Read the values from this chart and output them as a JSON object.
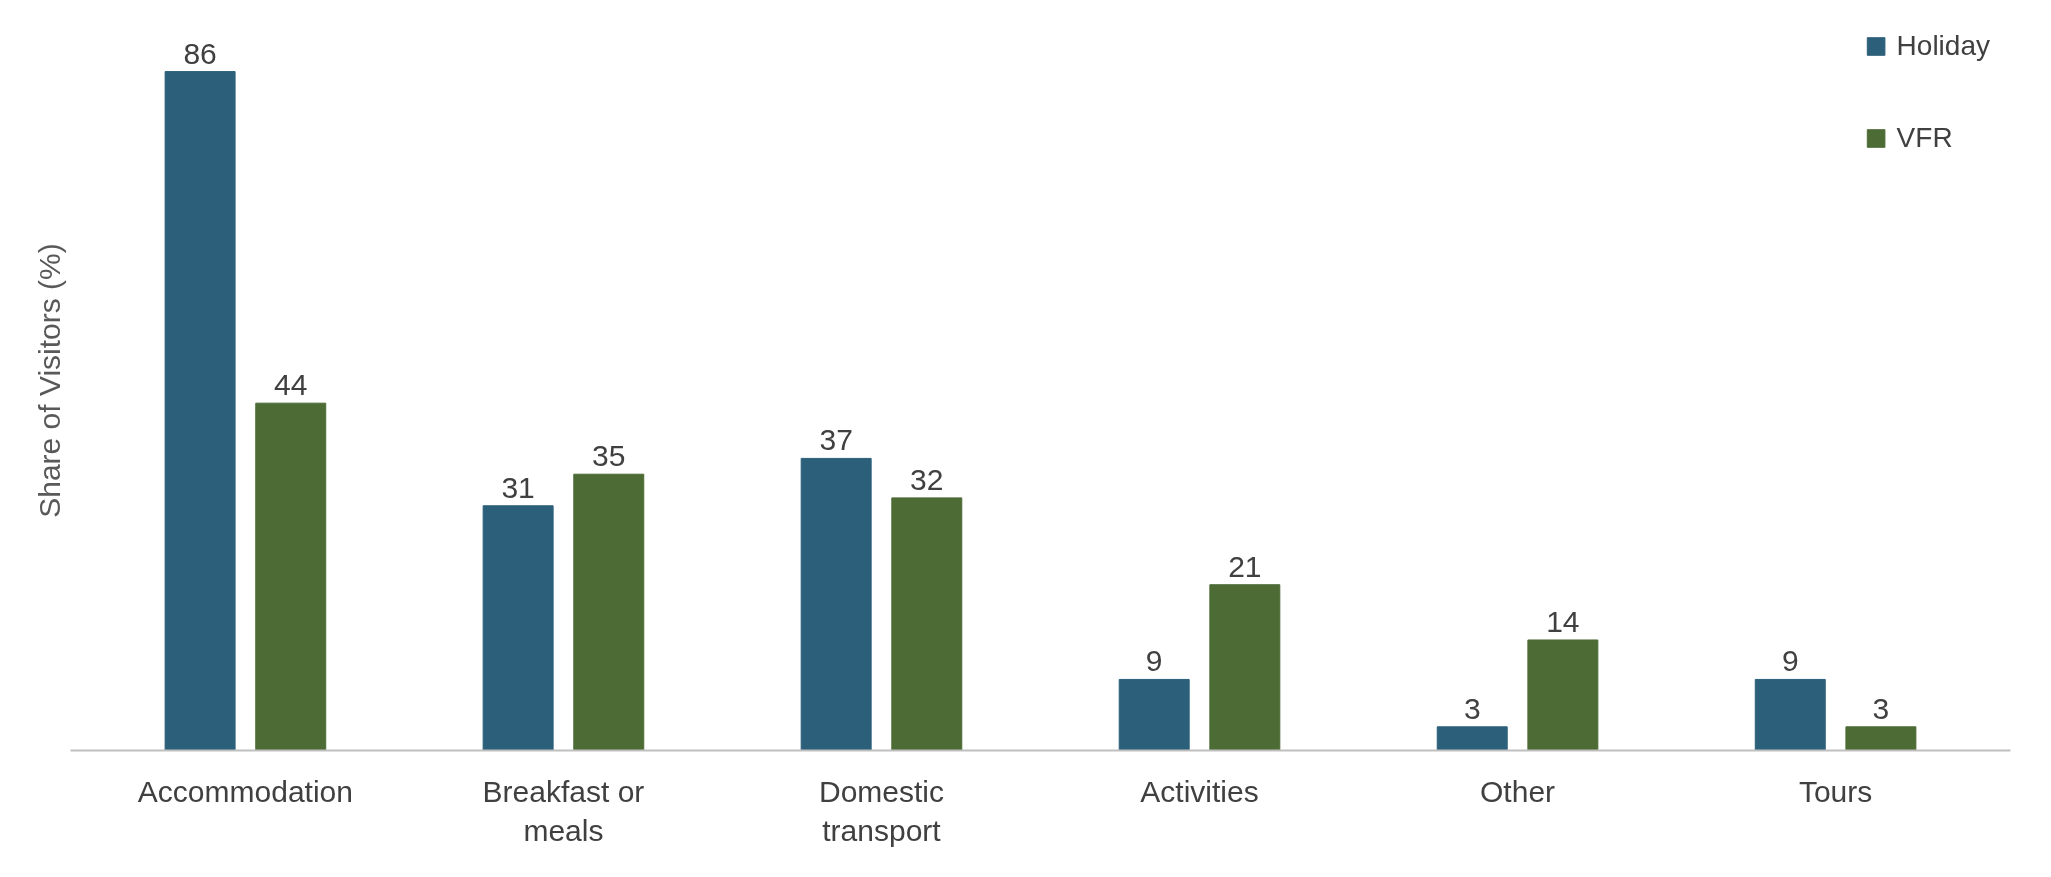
{
  "chart_data": {
    "type": "bar",
    "ylabel": "Share of Visitors (%)",
    "tick_labels": "x",
    "categories": [
      "Accommodation",
      "Breakfast or meals",
      "Domestic transport",
      "Activities",
      "Other",
      "Tours"
    ],
    "series": [
      {
        "name": "Holiday",
        "color": "#2c5f7a",
        "values": [
          86,
          31,
          37,
          9,
          3,
          9
        ]
      },
      {
        "name": "VFR",
        "color": "#4c6b35",
        "values": [
          44,
          35,
          32,
          21,
          14,
          3
        ]
      }
    ],
    "data_labels": true,
    "legend": "top right",
    "grid": false
  }
}
